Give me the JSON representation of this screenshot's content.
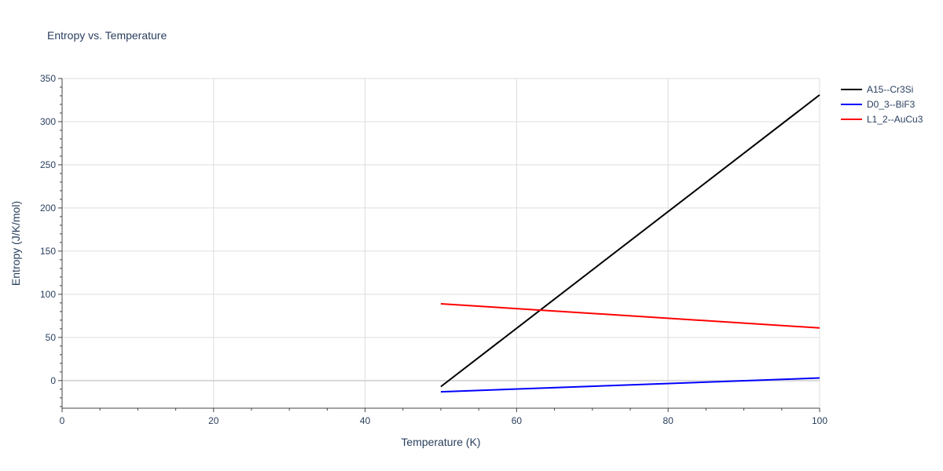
{
  "chart_data": {
    "type": "line",
    "title": "Entropy vs. Temperature",
    "xlabel": "Temperature (K)",
    "ylabel": "Entropy (J/K/mol)",
    "xlim": [
      0,
      100
    ],
    "ylim": [
      -32,
      350
    ],
    "x_ticks": [
      0,
      20,
      40,
      60,
      80,
      100
    ],
    "y_ticks": [
      0,
      50,
      100,
      150,
      200,
      250,
      300,
      350
    ],
    "grid": true,
    "legend_position": "top-right",
    "series": [
      {
        "name": "A15--Cr3Si",
        "color": "#000000",
        "x": [
          50,
          100
        ],
        "y": [
          -7,
          331
        ]
      },
      {
        "name": "D0_3--BiF3",
        "color": "#0000ff",
        "x": [
          50,
          100
        ],
        "y": [
          -13,
          3
        ]
      },
      {
        "name": "L1_2--AuCu3",
        "color": "#ff0000",
        "x": [
          50,
          100
        ],
        "y": [
          89,
          61
        ]
      }
    ]
  }
}
